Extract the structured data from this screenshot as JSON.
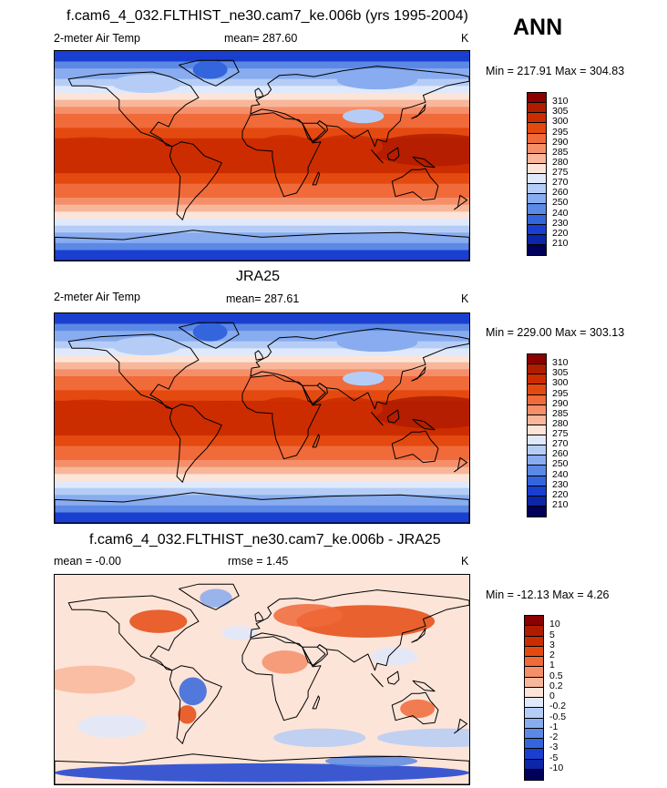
{
  "page_title": "ANN",
  "panels": [
    {
      "title": "f.cam6_4_032.FLTHIST_ne30.cam7_ke.006b (yrs 1995-2004)",
      "left_label": "2-meter Air Temp",
      "center_label": "mean= 287.60",
      "right_label": "K",
      "minmax": "Min = 217.91 Max = 304.83",
      "colorbar": {
        "labels": [
          "310",
          "305",
          "300",
          "295",
          "290",
          "285",
          "280",
          "275",
          "270",
          "260",
          "250",
          "240",
          "230",
          "220",
          "210"
        ],
        "colors": [
          "#8b0000",
          "#b01c00",
          "#cc2d00",
          "#e44a10",
          "#f06a3a",
          "#f58f6a",
          "#f8b79a",
          "#fde4d8",
          "#dfe9fb",
          "#b5cdf6",
          "#88acef",
          "#5b89e5",
          "#3465dd",
          "#1a3fd0",
          "#0d25a8",
          "#00005a"
        ]
      },
      "map_type": "abs"
    },
    {
      "title": "JRA25",
      "left_label": "2-meter Air Temp",
      "center_label": "mean= 287.61",
      "right_label": "K",
      "minmax": "Min = 229.00 Max = 303.13",
      "colorbar": {
        "labels": [
          "310",
          "305",
          "300",
          "295",
          "290",
          "285",
          "280",
          "275",
          "270",
          "260",
          "250",
          "240",
          "230",
          "220",
          "210"
        ],
        "colors": [
          "#8b0000",
          "#b01c00",
          "#cc2d00",
          "#e44a10",
          "#f06a3a",
          "#f58f6a",
          "#f8b79a",
          "#fde4d8",
          "#dfe9fb",
          "#b5cdf6",
          "#88acef",
          "#5b89e5",
          "#3465dd",
          "#1a3fd0",
          "#0d25a8",
          "#00005a"
        ]
      },
      "map_type": "abs"
    },
    {
      "title": "f.cam6_4_032.FLTHIST_ne30.cam7_ke.006b - JRA25",
      "left_label": "mean =  -0.00",
      "center_label": "rmse =   1.45",
      "right_label": "K",
      "minmax": "Min = -12.13 Max =   4.26",
      "colorbar": {
        "labels": [
          "10",
          "5",
          "3",
          "2",
          "1",
          "0.5",
          "0.2",
          "0",
          "-0.2",
          "-0.5",
          "-1",
          "-2",
          "-3",
          "-5",
          "-10"
        ],
        "colors": [
          "#8b0000",
          "#b01c00",
          "#cc2d00",
          "#e44a10",
          "#f06a3a",
          "#f58f6a",
          "#f8b79a",
          "#fde4d8",
          "#dfe9fb",
          "#b5cdf6",
          "#88acef",
          "#5b89e5",
          "#3465dd",
          "#1a3fd0",
          "#0d25a8",
          "#00005a"
        ]
      },
      "map_type": "diff"
    }
  ]
}
